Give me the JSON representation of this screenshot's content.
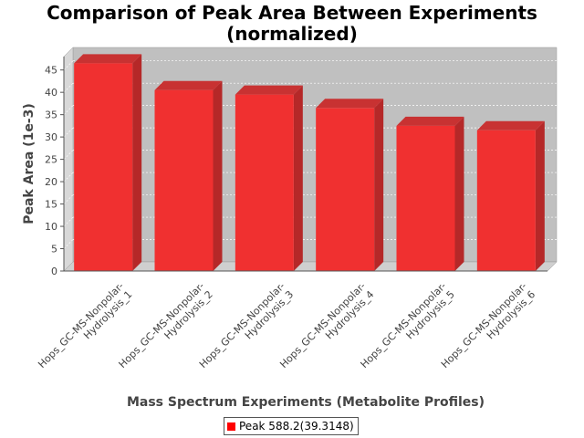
{
  "chart_data": {
    "type": "bar",
    "title_lines": [
      "Comparison of Peak Area Between Experiments",
      "(normalized)"
    ],
    "xlabel": "Mass Spectrum Experiments (Metabolite Profiles)",
    "ylabel": "Peak Area (1e-3)",
    "categories": [
      [
        "Hops_GC-MS-Nonpolar-",
        "Hydrolysis_1"
      ],
      [
        "Hops_GC-MS-Nonpolar-",
        "Hydrolysis_2"
      ],
      [
        "Hops_GC-MS-Nonpolar-",
        "Hydrolysis_3"
      ],
      [
        "Hops_GC-MS-Nonpolar-",
        "Hydrolysis_4"
      ],
      [
        "Hops_GC-MS-Nonpolar-",
        "Hydrolysis_5"
      ],
      [
        "Hops_GC-MS-Nonpolar-",
        "Hydrolysis_6"
      ]
    ],
    "series": [
      {
        "name": "Peak 588.2(39.3148)",
        "values": [
          46.5,
          40.5,
          39.5,
          36.5,
          32.5,
          31.5
        ]
      }
    ],
    "ylim": [
      0,
      48
    ],
    "yticks": [
      0,
      5,
      10,
      15,
      20,
      25,
      30,
      35,
      40,
      45
    ],
    "grid": true,
    "legend_position": "bottom-center",
    "colors": {
      "bar_front": "#f03030",
      "bar_side": "#b52828",
      "bar_top": "#c83232",
      "plot_back": "#c0c0c0",
      "plot_side": "#d8d8d8",
      "plot_floor": "#cfcfcf",
      "legend_swatch": "#ff0000"
    }
  }
}
